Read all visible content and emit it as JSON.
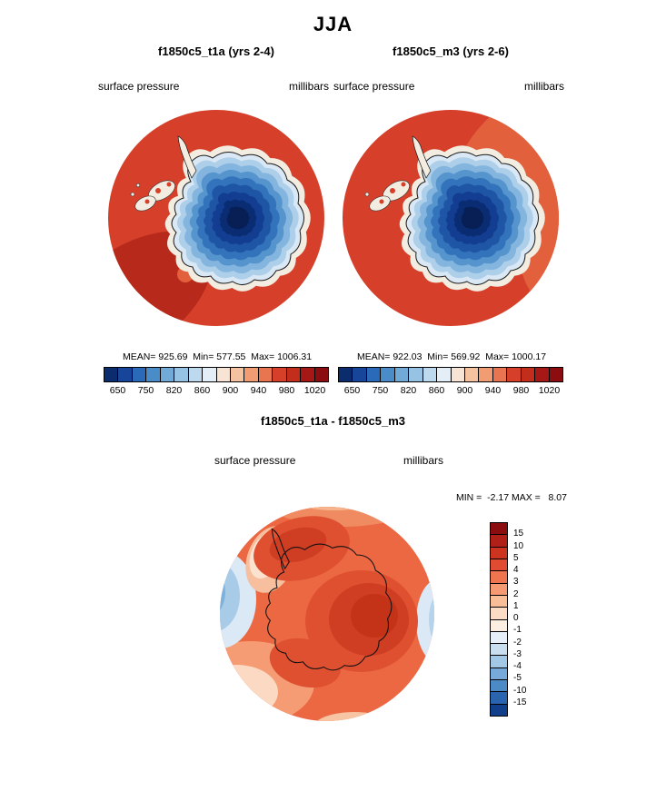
{
  "page": {
    "title": "JJA"
  },
  "panels": {
    "left": {
      "title": "f1850c5_t1a (yrs 2-4)",
      "field": "surface pressure",
      "units": "millibars",
      "stats": "MEAN= 925.69  Min= 577.55  Max= 1006.31"
    },
    "right": {
      "title": "f1850c5_m3 (yrs 2-6)",
      "field": "surface pressure",
      "units": "millibars",
      "stats": "MEAN= 922.03  Min= 569.92  Max= 1000.17"
    },
    "diff": {
      "title": "f1850c5_t1a - f1850c5_m3",
      "field": "surface pressure",
      "units": "millibars",
      "stats": "MIN =  -2.17 MAX =   8.07"
    }
  },
  "colorbars": {
    "pressure": {
      "ticks": [
        "650",
        "750",
        "820",
        "860",
        "900",
        "940",
        "980",
        "1020"
      ],
      "colors": [
        "#0b2d6d",
        "#16459a",
        "#2a6ab8",
        "#4a8cc8",
        "#71aad6",
        "#96c2e4",
        "#bcd9ee",
        "#e4eef6",
        "#f8e4d4",
        "#f6c3a0",
        "#f19c72",
        "#e97450",
        "#d6402b",
        "#c22d1c",
        "#a51815",
        "#8c0d10"
      ]
    },
    "diff": {
      "ticks": [
        "15",
        "10",
        "5",
        "4",
        "3",
        "2",
        "1",
        "0",
        "-1",
        "-2",
        "-3",
        "-4",
        "-5",
        "-10",
        "-15"
      ],
      "colors": [
        "#8c0d10",
        "#b02018",
        "#cd3420",
        "#e14b31",
        "#ee7550",
        "#f59a72",
        "#f9bd98",
        "#fcdcc4",
        "#fdeee2",
        "#e7f0f8",
        "#c9dff0",
        "#a3c8e6",
        "#77aada",
        "#4c8ac6",
        "#2a64ae",
        "#123f8c"
      ]
    }
  },
  "chart_data": [
    {
      "type": "heatmap",
      "title": "f1850c5_t1a (yrs 2-4)",
      "season": "JJA",
      "variable": "surface pressure",
      "units": "millibars",
      "region": "Antarctica, south polar view",
      "stats": {
        "mean": 925.69,
        "min": 577.55,
        "max": 1006.31
      },
      "contour_levels": [
        650,
        750,
        820,
        860,
        900,
        940,
        980,
        1020
      ],
      "palette": "blue-white-red",
      "legend_position": "bottom"
    },
    {
      "type": "heatmap",
      "title": "f1850c5_m3 (yrs 2-6)",
      "season": "JJA",
      "variable": "surface pressure",
      "units": "millibars",
      "region": "Antarctica, south polar view",
      "stats": {
        "mean": 922.03,
        "min": 569.92,
        "max": 1000.17
      },
      "contour_levels": [
        650,
        750,
        820,
        860,
        900,
        940,
        980,
        1020
      ],
      "palette": "blue-white-red",
      "legend_position": "bottom"
    },
    {
      "type": "heatmap",
      "title": "f1850c5_t1a - f1850c5_m3",
      "season": "JJA",
      "variable": "surface pressure difference",
      "units": "millibars",
      "region": "Antarctica, south polar view",
      "stats": {
        "min": -2.17,
        "max": 8.07
      },
      "contour_levels": [
        -15,
        -10,
        -5,
        -4,
        -3,
        -2,
        -1,
        0,
        1,
        2,
        3,
        4,
        5,
        10,
        15
      ],
      "palette": "blue-white-red",
      "legend_position": "right"
    }
  ]
}
